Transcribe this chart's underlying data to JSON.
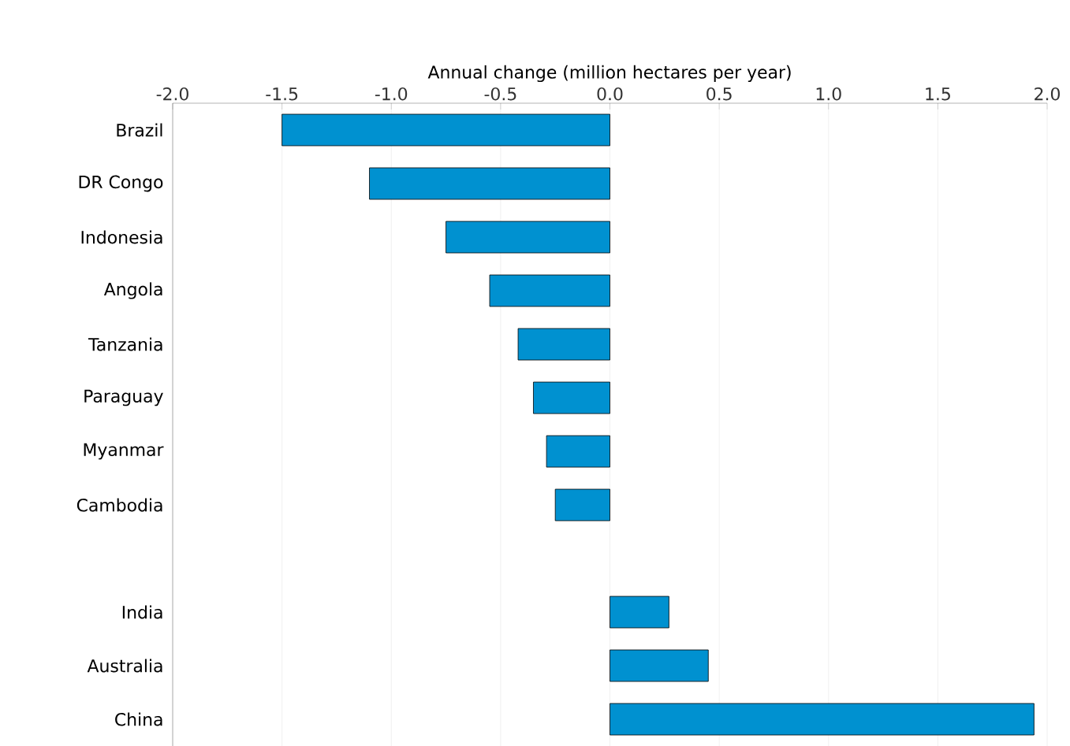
{
  "chart_data": {
    "type": "bar",
    "orientation": "horizontal",
    "xlabel": "Annual change (million hectares per year)",
    "categories": [
      "Brazil",
      "DR Congo",
      "Indonesia",
      "Angola",
      "Tanzania",
      "Paraguay",
      "Myanmar",
      "Cambodia",
      null,
      "India",
      "Australia",
      "China"
    ],
    "values": [
      -1.5,
      -1.1,
      -0.75,
      -0.55,
      -0.42,
      -0.35,
      -0.29,
      -0.25,
      null,
      0.27,
      0.45,
      1.94
    ],
    "color": "#0091d0",
    "xlim": [
      -2.0,
      2.0
    ],
    "xticks": [
      {
        "value": -2,
        "label": "-2.0"
      },
      {
        "value": -1.5,
        "label": "-1.5"
      },
      {
        "value": -1,
        "label": "-1.0"
      },
      {
        "value": -0.5,
        "label": "-0.5"
      },
      {
        "value": 0,
        "label": "0.0"
      },
      {
        "value": 0.5,
        "label": "0.5"
      },
      {
        "value": 1,
        "label": "1.0"
      },
      {
        "value": 1.5,
        "label": "1.5"
      },
      {
        "value": 2,
        "label": "2.0"
      }
    ],
    "grid": "x"
  }
}
